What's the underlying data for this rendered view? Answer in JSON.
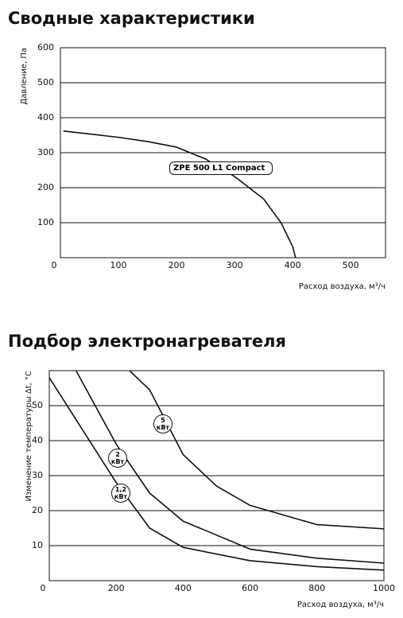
{
  "chart_data": [
    {
      "type": "line",
      "title": "Сводные характеристики",
      "y_label": "Давление, Па",
      "x_label": "Расход воздуха, м³/ч",
      "xlim": [
        0,
        560
      ],
      "xticks": [
        0,
        100,
        200,
        300,
        400,
        500
      ],
      "ylim": [
        0,
        600
      ],
      "yticks": [
        100,
        200,
        300,
        400,
        500,
        600
      ],
      "grid": true,
      "series": [
        {
          "name": "ZPE 500 L1 Compact",
          "color": "#111111",
          "x": [
            5,
            100,
            150,
            200,
            250,
            300,
            350,
            380,
            400,
            405
          ],
          "values": [
            362,
            344,
            332,
            316,
            282,
            232,
            168,
            100,
            32,
            0
          ]
        }
      ]
    },
    {
      "type": "line",
      "title": "Подбор электронагревателя",
      "y_label": "Изменение температуры Δt, °C",
      "x_label": "Расход воздуха, м³/ч",
      "xlim": [
        0,
        1000
      ],
      "xticks": [
        0,
        200,
        400,
        600,
        800,
        1000
      ],
      "ylim": [
        0,
        60
      ],
      "yticks": [
        10,
        20,
        30,
        40,
        50
      ],
      "grid": true,
      "series": [
        {
          "name": "5 кВт",
          "color": "#111111",
          "x": [
            240,
            300,
            400,
            500,
            600,
            800,
            1000
          ],
          "values": [
            60,
            54.5,
            36,
            27,
            21.5,
            16,
            14.8
          ]
        },
        {
          "name": "2 кВт",
          "color": "#111111",
          "x": [
            80,
            200,
            300,
            400,
            600,
            800,
            1000
          ],
          "values": [
            60,
            39,
            25,
            17,
            9,
            6.4,
            5
          ]
        },
        {
          "name": "1,2 кВт",
          "color": "#111111",
          "x": [
            0,
            100,
            200,
            300,
            400,
            600,
            800,
            1000
          ],
          "values": [
            58,
            43,
            28,
            15,
            9.5,
            5.7,
            4,
            3
          ]
        }
      ]
    }
  ]
}
